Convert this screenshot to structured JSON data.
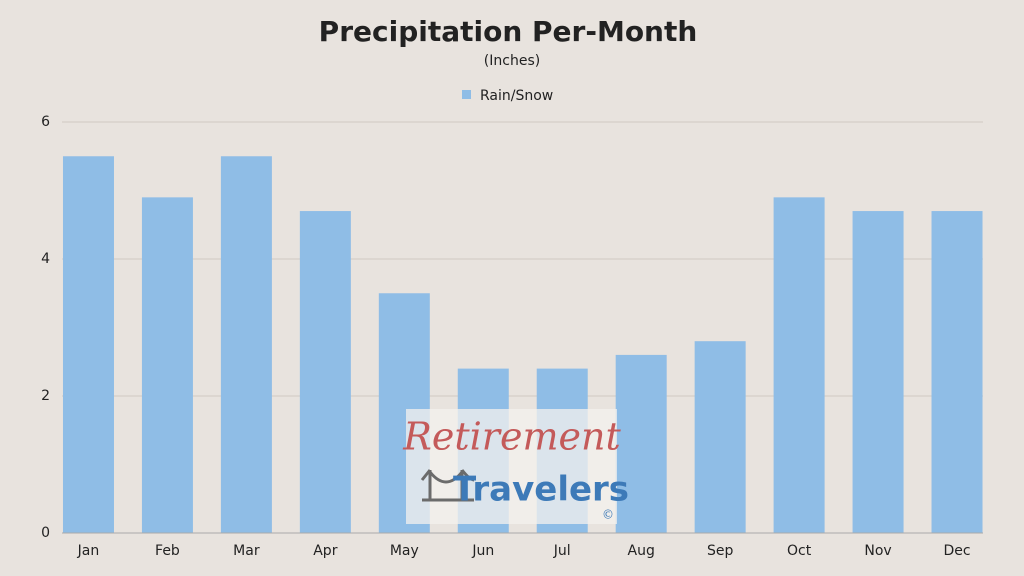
{
  "chart_data": {
    "type": "bar",
    "title": "Precipitation Per-Month",
    "subtitle": "(Inches)",
    "categories": [
      "Jan",
      "Feb",
      "Mar",
      "Apr",
      "May",
      "Jun",
      "Jul",
      "Aug",
      "Sep",
      "Oct",
      "Nov",
      "Dec"
    ],
    "series": [
      {
        "name": "Rain/Snow",
        "color": "#8fbde6",
        "values": [
          5.5,
          4.9,
          5.5,
          4.7,
          3.5,
          2.4,
          2.4,
          2.6,
          2.8,
          4.9,
          4.7,
          4.7
        ]
      }
    ],
    "ylim": [
      0,
      6
    ],
    "yticks": [
      0,
      2,
      4,
      6
    ],
    "grid": true,
    "legend": "top"
  },
  "watermark": {
    "line1": "Retirement",
    "line2": "Travelers",
    "mark": "©"
  }
}
